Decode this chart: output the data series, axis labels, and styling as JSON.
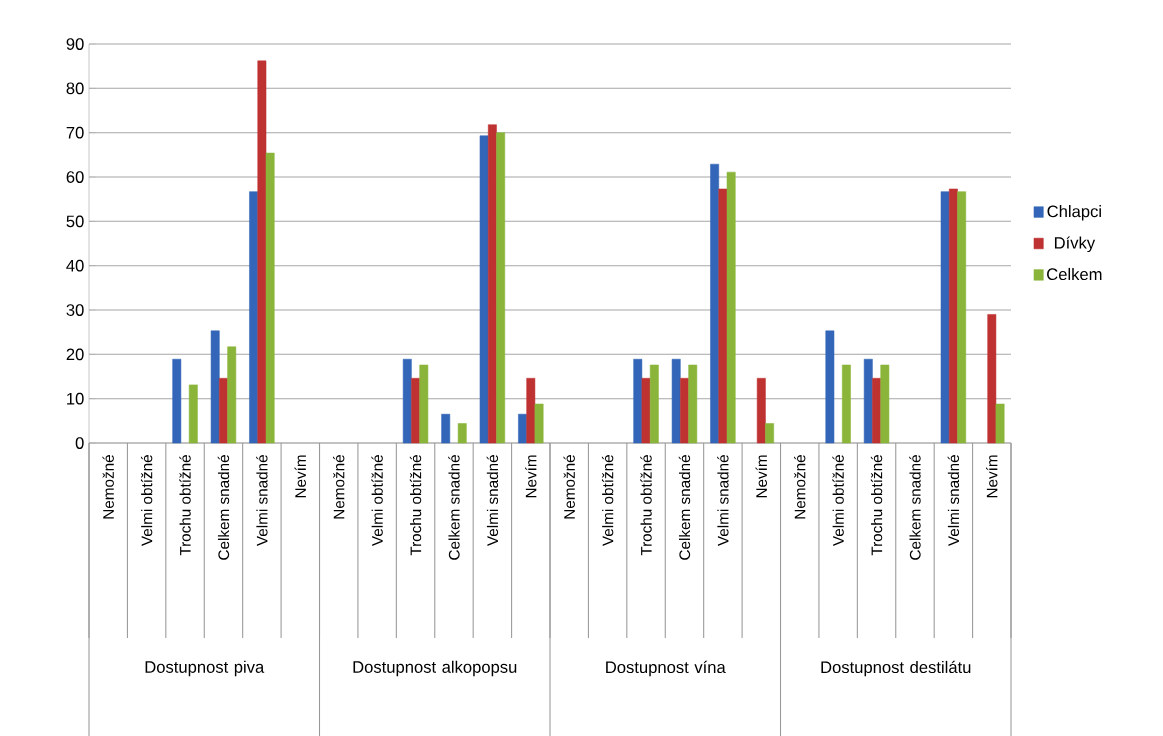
{
  "chart_data": {
    "type": "bar",
    "categories": [
      "Nemožné",
      "Velmi obtížné",
      "Trochu obtížné",
      "Celkem snadné",
      "Velmi snadné",
      "Nevím",
      "Nemožné",
      "Velmi obtížné",
      "Trochu obtížné",
      "Celkem snadné",
      "Velmi snadné",
      "Nevím",
      "Nemožné",
      "Velmi obtížné",
      "Trochu obtížné",
      "Celkem snadné",
      "Velmi snadné",
      "Nevím",
      "Nemožné",
      "Velmi obtížné",
      "Trochu obtížné",
      "Celkem snadné",
      "Velmi snadné",
      "Nevím"
    ],
    "series": [
      {
        "name": "Chlapci",
        "color": "#3366b8",
        "values": [
          null,
          null,
          18.9,
          25.3,
          56.7,
          null,
          null,
          null,
          18.9,
          6.5,
          69.3,
          6.5,
          null,
          null,
          18.9,
          18.9,
          62.9,
          null,
          null,
          25.3,
          18.9,
          null,
          56.7,
          null
        ]
      },
      {
        "name": "Dívky",
        "color": "#be3232",
        "values": [
          null,
          null,
          null,
          14.6,
          86.2,
          null,
          null,
          null,
          14.6,
          null,
          71.8,
          14.6,
          null,
          null,
          14.6,
          14.6,
          57.3,
          14.6,
          null,
          null,
          14.6,
          null,
          57.3,
          29.0
        ]
      },
      {
        "name": "Celkem",
        "color": "#8ab53a",
        "values": [
          null,
          null,
          13.1,
          21.7,
          65.4,
          null,
          null,
          null,
          17.6,
          4.4,
          70.0,
          8.8,
          null,
          null,
          17.6,
          17.6,
          61.1,
          4.4,
          null,
          17.6,
          17.6,
          null,
          56.7,
          8.8
        ]
      }
    ],
    "annotations": [
      "Dostupnost piva",
      "Dostupnost alkopopsu",
      "Dostupnost vína",
      "Dostupnost destilátu"
    ],
    "ylim": [
      0,
      90
    ],
    "yticks": [
      0,
      10,
      20,
      30,
      40,
      50,
      60,
      70,
      80,
      90
    ],
    "grid": "y",
    "legend": "right"
  }
}
